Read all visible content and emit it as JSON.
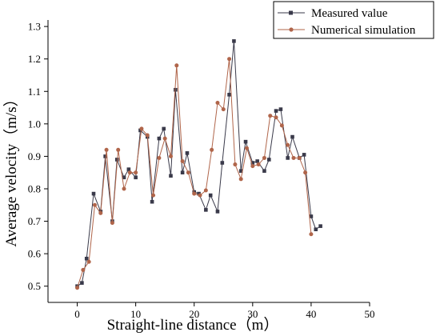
{
  "chart_data": {
    "type": "line",
    "xlabel": "Straight-line distance（m）",
    "ylabel": "Average velocity（m/s）",
    "xlim": [
      -5,
      50
    ],
    "ylim": [
      0.45,
      1.32
    ],
    "xticks": [
      0,
      10,
      20,
      30,
      40,
      50
    ],
    "yticks": [
      0.5,
      0.6,
      0.7,
      0.8,
      0.9,
      1.0,
      1.1,
      1.2,
      1.3
    ],
    "ytick_labels": [
      "0.5",
      "0.6",
      "0.7",
      "0.8",
      "0.9",
      "1.0",
      "1.1",
      "1.2",
      "1.3"
    ],
    "legend_position": "top-right",
    "series": [
      {
        "name": "Measured value",
        "color": "#3a3a4a",
        "marker": "square",
        "points": [
          [
            0.0,
            0.5
          ],
          [
            0.8,
            0.51
          ],
          [
            1.6,
            0.585
          ],
          [
            2.8,
            0.785
          ],
          [
            4.0,
            0.73
          ],
          [
            4.8,
            0.9
          ],
          [
            6.0,
            0.7
          ],
          [
            6.8,
            0.89
          ],
          [
            8.0,
            0.835
          ],
          [
            8.8,
            0.86
          ],
          [
            10.0,
            0.835
          ],
          [
            10.8,
            0.98
          ],
          [
            12.0,
            0.96
          ],
          [
            12.8,
            0.76
          ],
          [
            14.0,
            0.955
          ],
          [
            14.8,
            0.985
          ],
          [
            16.0,
            0.84
          ],
          [
            16.8,
            1.105
          ],
          [
            18.0,
            0.85
          ],
          [
            18.8,
            0.91
          ],
          [
            20.0,
            0.79
          ],
          [
            20.8,
            0.785
          ],
          [
            22.0,
            0.735
          ],
          [
            22.8,
            0.78
          ],
          [
            24.0,
            0.73
          ],
          [
            24.8,
            0.88
          ],
          [
            26.0,
            1.09
          ],
          [
            26.8,
            1.255
          ],
          [
            28.0,
            0.855
          ],
          [
            28.8,
            0.945
          ],
          [
            30.0,
            0.88
          ],
          [
            30.8,
            0.885
          ],
          [
            32.0,
            0.855
          ],
          [
            32.8,
            0.89
          ],
          [
            34.0,
            1.04
          ],
          [
            34.8,
            1.045
          ],
          [
            36.0,
            0.895
          ],
          [
            36.8,
            0.96
          ],
          [
            38.0,
            0.895
          ],
          [
            38.8,
            0.905
          ],
          [
            40.0,
            0.715
          ],
          [
            40.8,
            0.675
          ],
          [
            41.6,
            0.685
          ]
        ]
      },
      {
        "name": "Numerical simulation",
        "color": "#b0654a",
        "marker": "circle",
        "points": [
          [
            0.0,
            0.495
          ],
          [
            1.0,
            0.55
          ],
          [
            2.0,
            0.575
          ],
          [
            3.0,
            0.75
          ],
          [
            4.0,
            0.725
          ],
          [
            5.0,
            0.92
          ],
          [
            6.0,
            0.695
          ],
          [
            7.0,
            0.92
          ],
          [
            8.0,
            0.8
          ],
          [
            9.0,
            0.85
          ],
          [
            10.0,
            0.85
          ],
          [
            11.0,
            0.985
          ],
          [
            12.0,
            0.965
          ],
          [
            13.0,
            0.78
          ],
          [
            14.0,
            0.895
          ],
          [
            15.0,
            0.955
          ],
          [
            16.0,
            0.9
          ],
          [
            17.0,
            1.18
          ],
          [
            18.0,
            0.885
          ],
          [
            19.0,
            0.85
          ],
          [
            20.0,
            0.785
          ],
          [
            21.0,
            0.78
          ],
          [
            22.0,
            0.795
          ],
          [
            23.0,
            0.92
          ],
          [
            24.0,
            1.065
          ],
          [
            25.0,
            1.045
          ],
          [
            26.0,
            1.2
          ],
          [
            27.0,
            0.875
          ],
          [
            28.0,
            0.83
          ],
          [
            29.0,
            0.925
          ],
          [
            30.0,
            0.87
          ],
          [
            31.0,
            0.875
          ],
          [
            32.0,
            0.895
          ],
          [
            33.0,
            1.025
          ],
          [
            34.0,
            1.02
          ],
          [
            35.0,
            0.995
          ],
          [
            36.0,
            0.935
          ],
          [
            37.0,
            0.895
          ],
          [
            38.0,
            0.895
          ],
          [
            39.0,
            0.85
          ],
          [
            40.0,
            0.66
          ]
        ]
      }
    ]
  }
}
